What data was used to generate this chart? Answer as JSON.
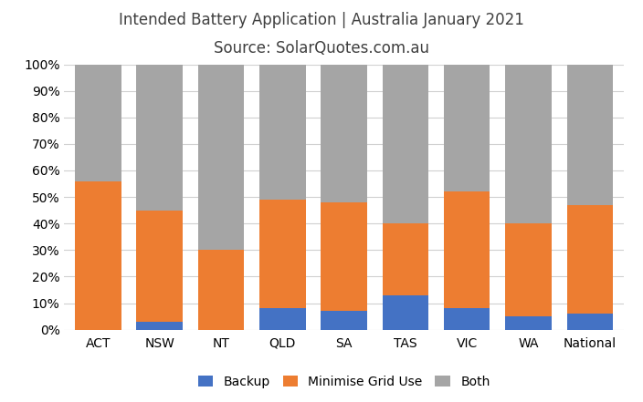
{
  "categories": [
    "ACT",
    "NSW",
    "NT",
    "QLD",
    "SA",
    "TAS",
    "VIC",
    "WA",
    "National"
  ],
  "backup": [
    0,
    3,
    0,
    8,
    7,
    13,
    8,
    5,
    6
  ],
  "minimise_grid": [
    56,
    42,
    30,
    41,
    41,
    27,
    44,
    35,
    41
  ],
  "both": [
    44,
    55,
    70,
    51,
    52,
    60,
    48,
    60,
    53
  ],
  "color_backup": "#4472C4",
  "color_minimise": "#ED7D31",
  "color_both": "#A5A5A5",
  "title_line1": "Intended Battery Application | Australia January 2021",
  "title_line2": "Source: SolarQuotes.com.au",
  "legend_labels": [
    "Backup",
    "Minimise Grid Use",
    "Both"
  ],
  "ylim": [
    0,
    100
  ],
  "background_color": "#FFFFFF",
  "title_color": "#404040",
  "bar_width": 0.75
}
